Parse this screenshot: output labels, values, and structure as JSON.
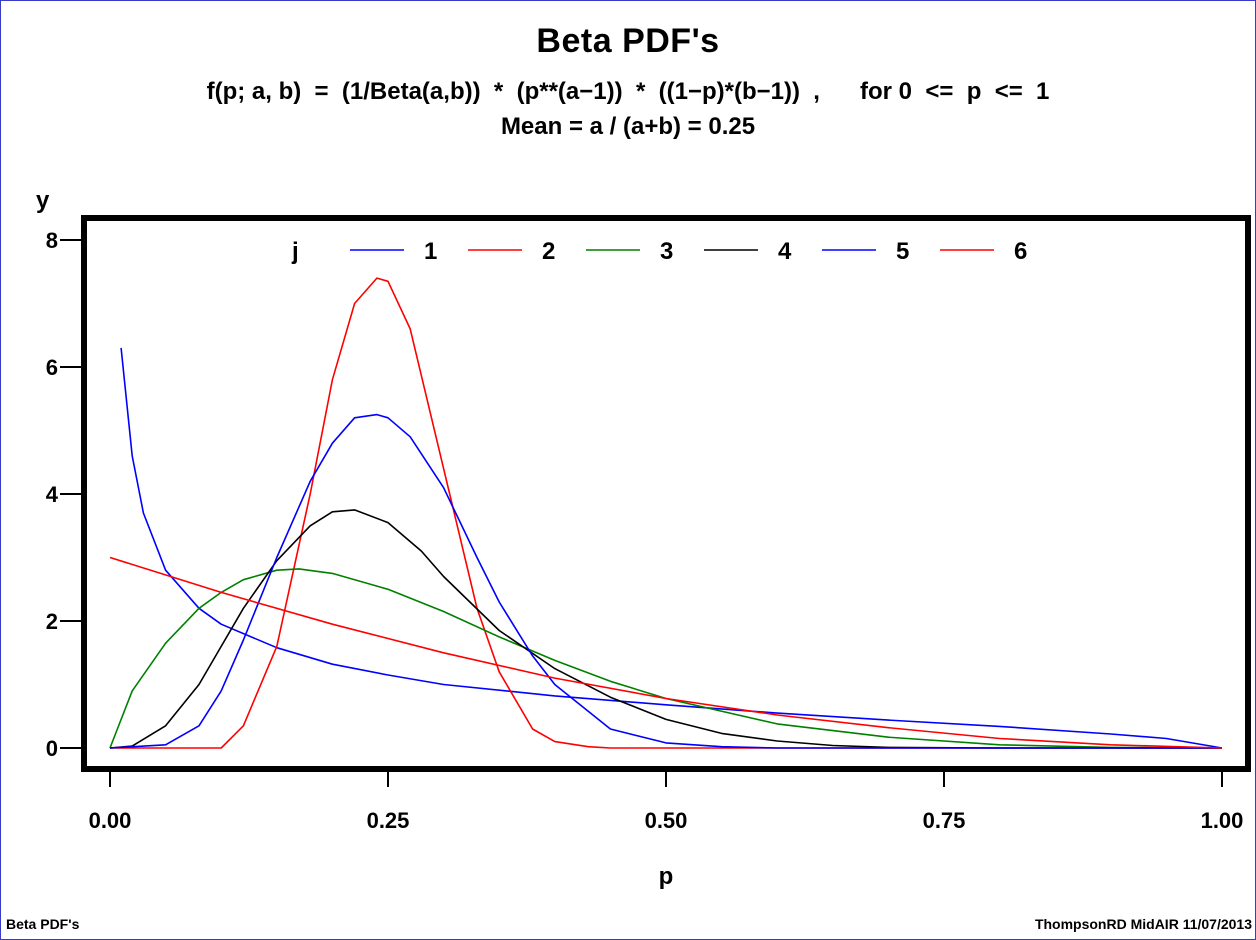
{
  "titles": {
    "main": "Beta PDF's",
    "formula": "f(p; a, b)  =  (1/Beta(a,b))  *  (p**(a−1))  *  ((1−p)*(b−1))  ,      for 0  <=  p  <=  1",
    "mean": "Mean  =  a / (a+b)  =  0.25"
  },
  "footer": {
    "left": "Beta PDF's",
    "right": "ThompsonRD  MidAIR  11/07/2013"
  },
  "chart_data": {
    "type": "line",
    "xlabel": "p",
    "ylabel": "y",
    "xlim": [
      0,
      1
    ],
    "ylim": [
      0,
      8
    ],
    "xticks": [
      "0.00",
      "0.25",
      "0.50",
      "0.75",
      "1.00"
    ],
    "yticks": [
      "0",
      "2",
      "4",
      "6",
      "8"
    ],
    "legend": {
      "title": "j",
      "position": "top-inside"
    },
    "series": [
      {
        "name": "1",
        "color": "#0000ff",
        "x": [
          0.01,
          0.02,
          0.03,
          0.05,
          0.08,
          0.1,
          0.15,
          0.2,
          0.25,
          0.3,
          0.4,
          0.5,
          0.6,
          0.7,
          0.8,
          0.9,
          0.95,
          1.0
        ],
        "y": [
          6.3,
          4.6,
          3.7,
          2.8,
          2.2,
          1.95,
          1.58,
          1.32,
          1.15,
          1.0,
          0.82,
          0.68,
          0.55,
          0.44,
          0.34,
          0.22,
          0.15,
          0.0
        ]
      },
      {
        "name": "2",
        "color": "#ff0000",
        "x": [
          0,
          0.1,
          0.12,
          0.15,
          0.18,
          0.2,
          0.22,
          0.24,
          0.25,
          0.27,
          0.3,
          0.33,
          0.35,
          0.38,
          0.4,
          0.43,
          0.45,
          0.5,
          0.6,
          1.0
        ],
        "y": [
          0,
          0.0,
          0.35,
          1.6,
          4.0,
          5.8,
          7.0,
          7.4,
          7.35,
          6.6,
          4.4,
          2.2,
          1.2,
          0.3,
          0.1,
          0.02,
          0.0,
          0.0,
          0.0,
          0.0
        ]
      },
      {
        "name": "3",
        "color": "#008000",
        "x": [
          0,
          0.02,
          0.05,
          0.08,
          0.1,
          0.12,
          0.15,
          0.17,
          0.2,
          0.25,
          0.3,
          0.35,
          0.4,
          0.45,
          0.5,
          0.6,
          0.7,
          0.8,
          0.9,
          1.0
        ],
        "y": [
          0,
          0.9,
          1.65,
          2.2,
          2.45,
          2.65,
          2.8,
          2.82,
          2.75,
          2.5,
          2.15,
          1.75,
          1.38,
          1.05,
          0.78,
          0.38,
          0.17,
          0.05,
          0.01,
          0.0
        ]
      },
      {
        "name": "4",
        "color": "#000000",
        "x": [
          0,
          0.02,
          0.05,
          0.08,
          0.1,
          0.12,
          0.15,
          0.18,
          0.2,
          0.22,
          0.25,
          0.28,
          0.3,
          0.35,
          0.4,
          0.45,
          0.5,
          0.55,
          0.6,
          0.65,
          0.7,
          0.8,
          1.0
        ],
        "y": [
          0,
          0.03,
          0.35,
          1.0,
          1.6,
          2.2,
          2.95,
          3.5,
          3.72,
          3.75,
          3.55,
          3.1,
          2.7,
          1.85,
          1.25,
          0.8,
          0.45,
          0.23,
          0.11,
          0.04,
          0.01,
          0.0,
          0.0
        ]
      },
      {
        "name": "5",
        "color": "#0000ff",
        "x": [
          0,
          0.05,
          0.08,
          0.1,
          0.12,
          0.15,
          0.18,
          0.2,
          0.22,
          0.24,
          0.25,
          0.27,
          0.3,
          0.33,
          0.35,
          0.38,
          0.4,
          0.45,
          0.5,
          0.55,
          0.6,
          1.0
        ],
        "y": [
          0,
          0.05,
          0.35,
          0.9,
          1.7,
          3.0,
          4.2,
          4.8,
          5.2,
          5.25,
          5.2,
          4.9,
          4.1,
          3.0,
          2.3,
          1.45,
          1.0,
          0.3,
          0.08,
          0.02,
          0.0,
          0.0
        ]
      },
      {
        "name": "6",
        "color": "#ff0000",
        "x": [
          0,
          0.1,
          0.2,
          0.3,
          0.4,
          0.5,
          0.6,
          0.7,
          0.8,
          0.9,
          1.0
        ],
        "y": [
          3.0,
          2.45,
          1.95,
          1.5,
          1.1,
          0.78,
          0.52,
          0.32,
          0.15,
          0.05,
          0.0
        ]
      }
    ]
  }
}
